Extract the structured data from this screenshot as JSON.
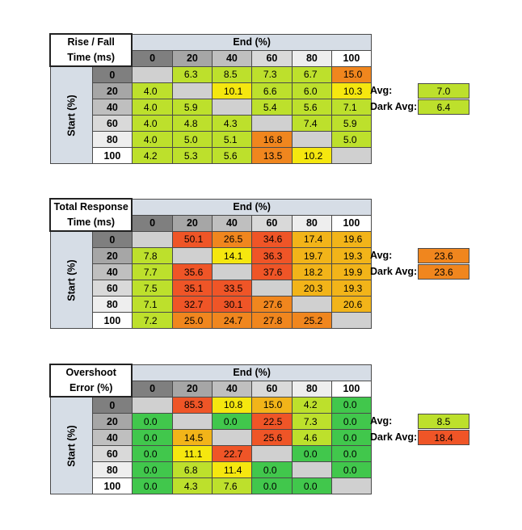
{
  "colors": {
    "green": "#41c74c",
    "yellow_green": "#bde02c",
    "yellow": "#f5e70f",
    "amber": "#f2b419",
    "orange": "#f0861e",
    "red_orange": "#ef5527",
    "empty": "#d0d0d0",
    "header_bg": "#d6dde6"
  },
  "chart_data": [
    {
      "type": "table",
      "title_line1": "Rise / Fall",
      "title_line2": "Time (ms)",
      "col_header": "End (%)",
      "row_header": "Start (%)",
      "columns": [
        "0",
        "20",
        "40",
        "60",
        "80",
        "100"
      ],
      "rows": [
        "0",
        "20",
        "40",
        "60",
        "80",
        "100"
      ],
      "values": [
        [
          "",
          "6.3",
          "8.5",
          "7.3",
          "6.7",
          "15.0"
        ],
        [
          "4.0",
          "",
          "10.1",
          "6.6",
          "6.0",
          "10.3"
        ],
        [
          "4.0",
          "5.9",
          "",
          "5.4",
          "5.6",
          "7.1"
        ],
        [
          "4.0",
          "4.8",
          "4.3",
          "",
          "7.4",
          "5.9"
        ],
        [
          "4.0",
          "5.0",
          "5.1",
          "16.8",
          "",
          "5.0"
        ],
        [
          "4.2",
          "5.3",
          "5.6",
          "13.5",
          "10.2",
          ""
        ]
      ],
      "colors": [
        [
          "empty",
          "yellow_green",
          "yellow_green",
          "yellow_green",
          "yellow_green",
          "orange"
        ],
        [
          "yellow_green",
          "empty",
          "yellow",
          "yellow_green",
          "yellow_green",
          "yellow"
        ],
        [
          "yellow_green",
          "yellow_green",
          "empty",
          "yellow_green",
          "yellow_green",
          "yellow_green"
        ],
        [
          "yellow_green",
          "yellow_green",
          "yellow_green",
          "empty",
          "yellow_green",
          "yellow_green"
        ],
        [
          "yellow_green",
          "yellow_green",
          "yellow_green",
          "orange",
          "empty",
          "yellow_green"
        ],
        [
          "yellow_green",
          "yellow_green",
          "yellow_green",
          "orange",
          "yellow",
          "empty"
        ]
      ],
      "avg_label": "Avg:",
      "avg_value": "7.0",
      "avg_color": "yellow_green",
      "dark_avg_label": "Dark Avg:",
      "dark_avg_value": "6.4",
      "dark_avg_color": "yellow_green"
    },
    {
      "type": "table",
      "title_line1": "Total Response",
      "title_line2": "Time (ms)",
      "col_header": "End (%)",
      "row_header": "Start (%)",
      "columns": [
        "0",
        "20",
        "40",
        "60",
        "80",
        "100"
      ],
      "rows": [
        "0",
        "20",
        "40",
        "60",
        "80",
        "100"
      ],
      "values": [
        [
          "",
          "50.1",
          "26.5",
          "34.6",
          "17.4",
          "19.6"
        ],
        [
          "7.8",
          "",
          "14.1",
          "36.3",
          "19.7",
          "19.3"
        ],
        [
          "7.7",
          "35.6",
          "",
          "37.6",
          "18.2",
          "19.9"
        ],
        [
          "7.5",
          "35.1",
          "33.5",
          "",
          "20.3",
          "19.3"
        ],
        [
          "7.1",
          "32.7",
          "30.1",
          "27.6",
          "",
          "20.6"
        ],
        [
          "7.2",
          "25.0",
          "24.7",
          "27.8",
          "25.2",
          ""
        ]
      ],
      "colors": [
        [
          "empty",
          "red_orange",
          "orange",
          "red_orange",
          "amber",
          "amber"
        ],
        [
          "yellow_green",
          "empty",
          "yellow",
          "red_orange",
          "amber",
          "amber"
        ],
        [
          "yellow_green",
          "red_orange",
          "empty",
          "red_orange",
          "amber",
          "amber"
        ],
        [
          "yellow_green",
          "red_orange",
          "red_orange",
          "empty",
          "amber",
          "amber"
        ],
        [
          "yellow_green",
          "red_orange",
          "red_orange",
          "orange",
          "empty",
          "amber"
        ],
        [
          "yellow_green",
          "orange",
          "orange",
          "orange",
          "orange",
          "empty"
        ]
      ],
      "avg_label": "Avg:",
      "avg_value": "23.6",
      "avg_color": "orange",
      "dark_avg_label": "Dark Avg:",
      "dark_avg_value": "23.6",
      "dark_avg_color": "orange"
    },
    {
      "type": "table",
      "title_line1": "Overshoot",
      "title_line2": "Error (%)",
      "col_header": "End (%)",
      "row_header": "Start (%)",
      "columns": [
        "0",
        "20",
        "40",
        "60",
        "80",
        "100"
      ],
      "rows": [
        "0",
        "20",
        "40",
        "60",
        "80",
        "100"
      ],
      "values": [
        [
          "",
          "85.3",
          "10.8",
          "15.0",
          "4.2",
          "0.0"
        ],
        [
          "0.0",
          "",
          "0.0",
          "22.5",
          "7.3",
          "0.0"
        ],
        [
          "0.0",
          "14.5",
          "",
          "25.6",
          "4.6",
          "0.0"
        ],
        [
          "0.0",
          "11.1",
          "22.7",
          "",
          "0.0",
          "0.0"
        ],
        [
          "0.0",
          "6.8",
          "11.4",
          "0.0",
          "",
          "0.0"
        ],
        [
          "0.0",
          "4.3",
          "7.6",
          "0.0",
          "0.0",
          ""
        ]
      ],
      "colors": [
        [
          "empty",
          "red_orange",
          "yellow",
          "amber",
          "yellow_green",
          "green"
        ],
        [
          "green",
          "empty",
          "green",
          "red_orange",
          "yellow_green",
          "green"
        ],
        [
          "green",
          "amber",
          "empty",
          "red_orange",
          "yellow_green",
          "green"
        ],
        [
          "green",
          "yellow",
          "red_orange",
          "empty",
          "green",
          "green"
        ],
        [
          "green",
          "yellow_green",
          "yellow",
          "green",
          "empty",
          "green"
        ],
        [
          "green",
          "yellow_green",
          "yellow_green",
          "green",
          "green",
          "empty"
        ]
      ],
      "avg_label": "Avg:",
      "avg_value": "8.5",
      "avg_color": "yellow_green",
      "dark_avg_label": "Dark Avg:",
      "dark_avg_value": "18.4",
      "dark_avg_color": "red_orange"
    }
  ]
}
